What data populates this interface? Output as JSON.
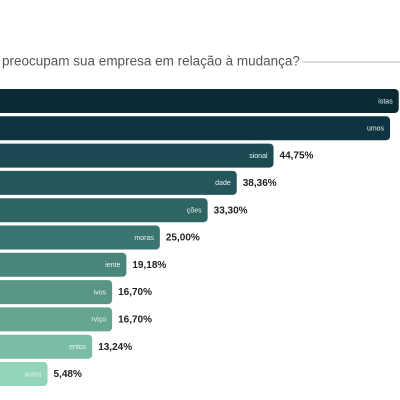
{
  "chart_data": {
    "type": "bar",
    "orientation": "horizontal",
    "title": "preocupam sua empresa em relação à mudança?",
    "categories": [
      "istas",
      "umos",
      "sional",
      "dade",
      "ções",
      "moras",
      "iente",
      "ivos",
      "rviço",
      "entos",
      "antes"
    ],
    "values": [
      66.5,
      65,
      44.75,
      38.36,
      33.3,
      25,
      19.18,
      16.7,
      16.7,
      13.24,
      5.48
    ],
    "value_labels": [
      null,
      null,
      "44,75%",
      "38,36%",
      "33,30%",
      "25,00%",
      "19,18%",
      "16,70%",
      "16,70%",
      "13,24%",
      "5,48%"
    ],
    "colors": [
      "#0b2a33",
      "#0f3441",
      "#1b4a52",
      "#24565b",
      "#2f6465",
      "#3b7571",
      "#4a857b",
      "#599586",
      "#66a691",
      "#7abda4",
      "#92d5ba"
    ]
  }
}
